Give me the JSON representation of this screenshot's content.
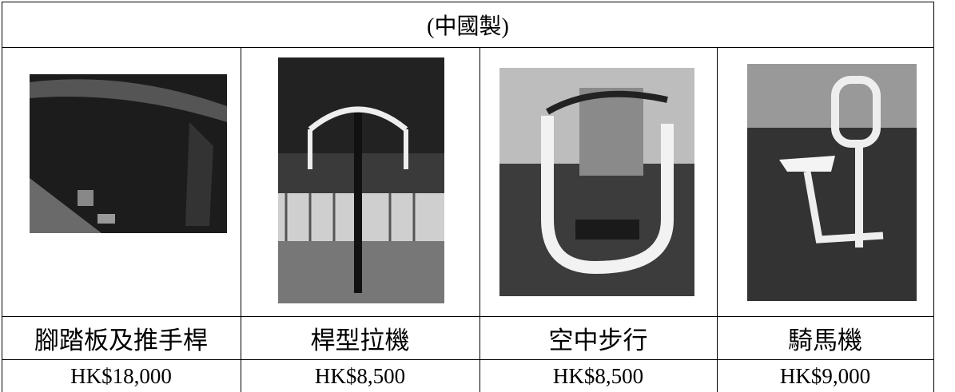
{
  "table": {
    "header": "(中國製)",
    "rows": [
      [
        "腳踏板及推手桿",
        "桿型拉機",
        "空中步行",
        "騎馬機"
      ],
      [
        "HK$18,000",
        "HK$8,500",
        "HK$8,500",
        "HK$9,000"
      ]
    ]
  }
}
